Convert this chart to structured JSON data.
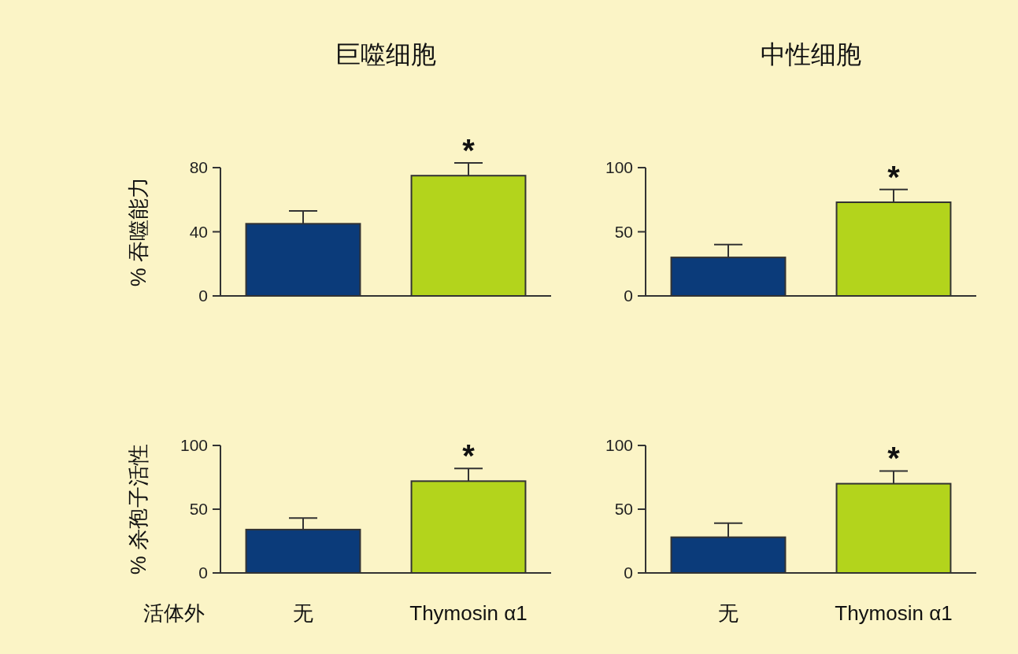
{
  "chart_data": [
    {
      "type": "bar",
      "title": "巨噬细胞",
      "ylabel": "% 吞噬能力",
      "categories": [
        "无",
        "Thymosin α1"
      ],
      "values": [
        45,
        75
      ],
      "colors": [
        "#0b3b7a",
        "#b3d41c"
      ],
      "errors": [
        [
          45,
          53
        ],
        [
          75,
          83
        ]
      ],
      "ylim": [
        0,
        80
      ],
      "yticks": [
        0,
        40,
        80
      ],
      "tick_labels": "y",
      "annotations": [
        {
          "text": "*",
          "x": "Thymosin α1",
          "y": 83
        }
      ]
    },
    {
      "type": "bar",
      "title": "中性细胞",
      "categories": [
        "无",
        "Thymosin α1"
      ],
      "values": [
        30,
        73
      ],
      "colors": [
        "#0b3b7a",
        "#b3d41c"
      ],
      "errors": [
        [
          30,
          40
        ],
        [
          73,
          83
        ]
      ],
      "ylim": [
        0,
        100
      ],
      "yticks": [
        0,
        50,
        100
      ],
      "tick_labels": "y",
      "annotations": [
        {
          "text": "*",
          "x": "Thymosin α1",
          "y": 83
        }
      ]
    },
    {
      "type": "bar",
      "ylabel": "% 杀孢子活性",
      "categories": [
        "无",
        "Thymosin α1"
      ],
      "values": [
        34,
        72
      ],
      "colors": [
        "#0b3b7a",
        "#b3d41c"
      ],
      "errors": [
        [
          34,
          43
        ],
        [
          72,
          82
        ]
      ],
      "ylim": [
        0,
        100
      ],
      "yticks": [
        0,
        50,
        100
      ],
      "annotations": [
        {
          "text": "*",
          "x": "Thymosin α1",
          "y": 82
        },
        "活体外"
      ]
    },
    {
      "type": "bar",
      "categories": [
        "无",
        "Thymosin α1"
      ],
      "values": [
        28,
        70
      ],
      "colors": [
        "#0b3b7a",
        "#b3d41c"
      ],
      "errors": [
        [
          28,
          39
        ],
        [
          70,
          80
        ]
      ],
      "ylim": [
        0,
        100
      ],
      "yticks": [
        0,
        50,
        100
      ],
      "annotations": [
        {
          "text": "*",
          "x": "Thymosin α1",
          "y": 80
        }
      ]
    }
  ]
}
